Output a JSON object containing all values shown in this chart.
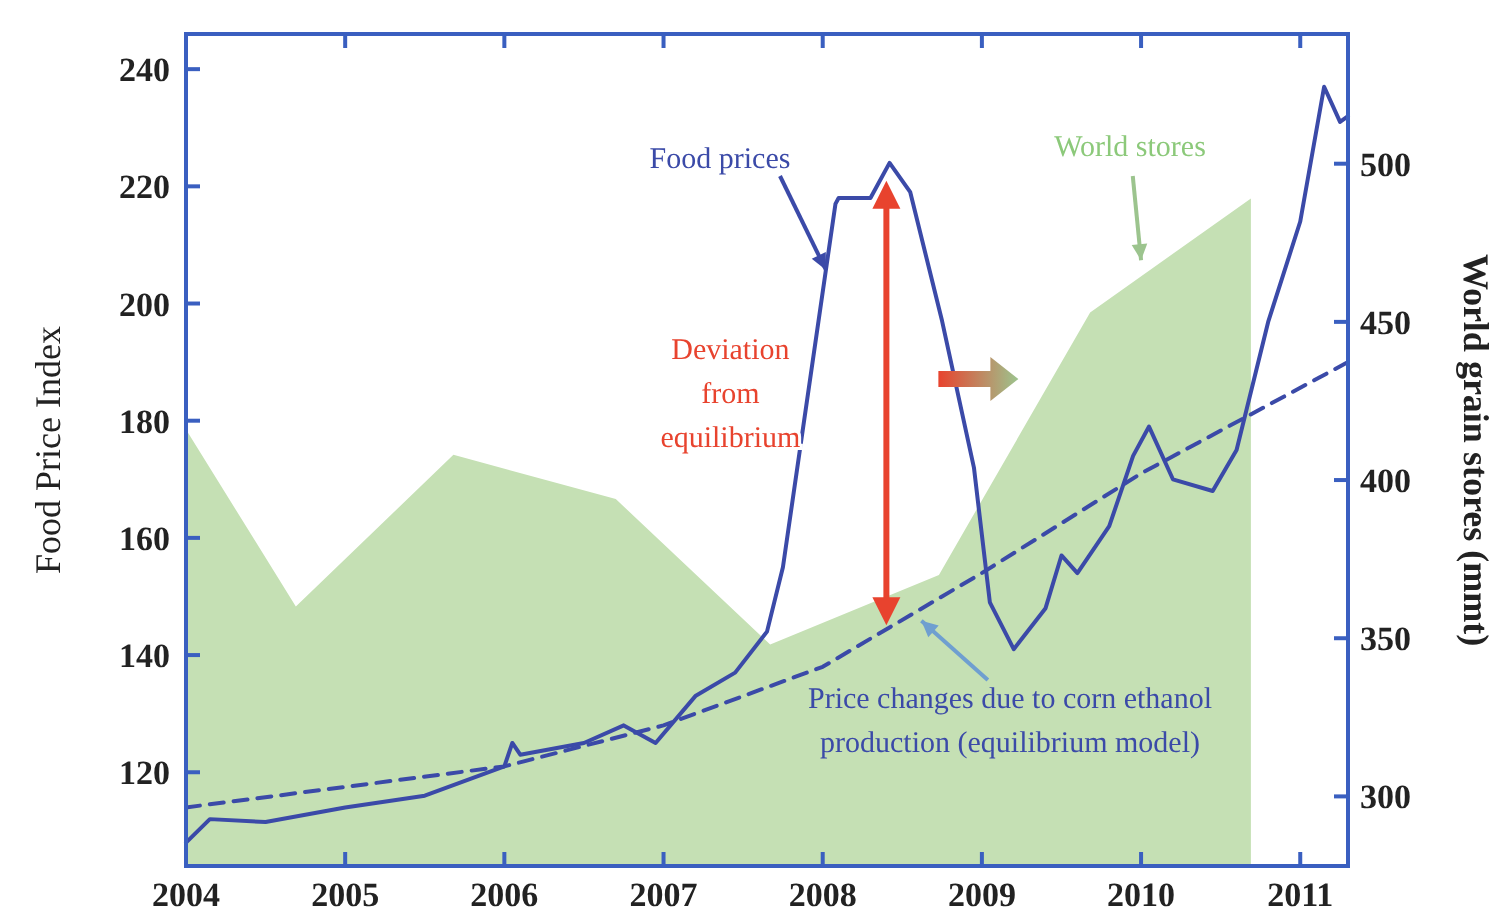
{
  "chart_data": {
    "type": "line",
    "ylabel": "Food Price Index",
    "y2label": "World grain stores (mmt)",
    "xlim": [
      2004,
      2011.3
    ],
    "xticks": [
      2004,
      2005,
      2006,
      2007,
      2008,
      2009,
      2010,
      2011
    ],
    "ylim": [
      104,
      246
    ],
    "yticks": [
      120,
      140,
      160,
      180,
      200,
      220,
      240
    ],
    "y2lim": [
      278,
      541
    ],
    "y2ticks": [
      300,
      350,
      400,
      450,
      500
    ],
    "grid": false,
    "legend": false,
    "series": [
      {
        "name": "World stores",
        "type": "area",
        "axis": "y2",
        "color": "#c5e0b4",
        "x": [
          2004,
          2004.69,
          2005.68,
          2006.7,
          2007.67,
          2008.73,
          2009.68,
          2010.69
        ],
        "values": [
          416,
          360,
          408,
          394,
          348,
          370,
          453,
          489
        ]
      },
      {
        "name": "Food prices",
        "color": "#3b4aa8",
        "line_style": "solid",
        "x": [
          2004,
          2004.15,
          2004.5,
          2005,
          2005.5,
          2006,
          2006.05,
          2006.1,
          2006.5,
          2006.75,
          2006.95,
          2007.2,
          2007.45,
          2007.65,
          2007.75,
          2008.08,
          2008.1,
          2008.3,
          2008.42,
          2008.55,
          2008.75,
          2008.95,
          2009.05,
          2009.2,
          2009.4,
          2009.5,
          2009.6,
          2009.8,
          2009.95,
          2010.05,
          2010.2,
          2010.45,
          2010.6,
          2010.8,
          2011,
          2011.15,
          2011.25,
          2011.3
        ],
        "values": [
          108,
          112,
          111.5,
          114,
          116,
          121,
          125,
          123,
          125,
          128,
          125,
          133,
          137,
          144,
          155,
          217,
          218,
          218,
          224,
          219,
          197,
          172,
          149,
          141,
          148,
          157,
          154,
          162,
          174,
          179,
          170,
          168,
          175,
          197,
          214,
          237,
          231,
          232
        ]
      },
      {
        "name": "Price changes due to corn ethanol production (equilibrium model)",
        "color": "#3b4aa8",
        "line_style": "dashed",
        "x": [
          2004,
          2006,
          2007,
          2008,
          2009,
          2010,
          2011.3
        ],
        "values": [
          114,
          121,
          128,
          138,
          154,
          171,
          190
        ]
      }
    ],
    "annotations": [
      "Deviation from equilibrium"
    ]
  }
}
